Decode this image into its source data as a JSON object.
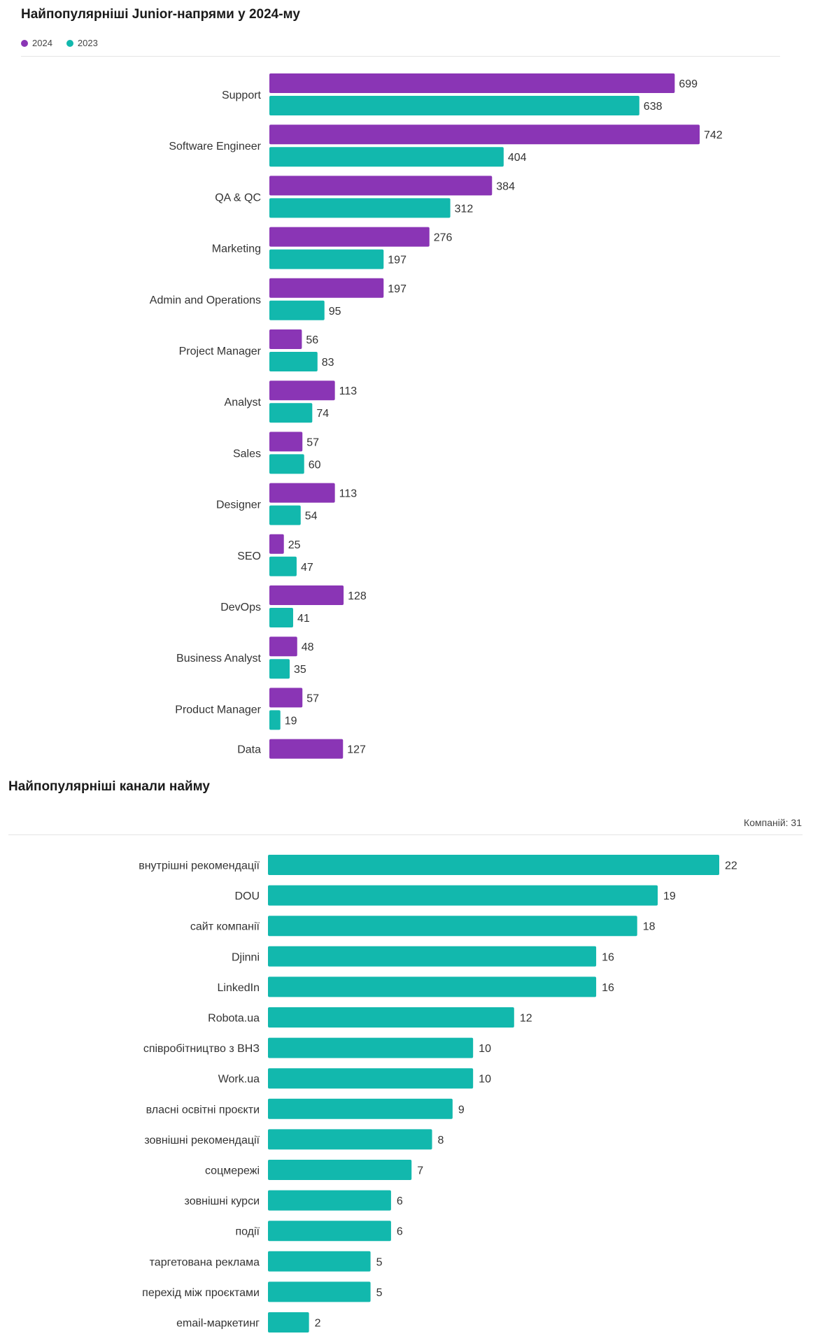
{
  "chart_data": [
    {
      "type": "bar",
      "orientation": "horizontal",
      "title": "Найпопулярніші Junior-напрями у 2024-му",
      "legend_position": "top-left",
      "grid": false,
      "categories": [
        "Support",
        "Software Engineer",
        "QA & QC",
        "Marketing",
        "Admin and Operations",
        "Project Manager",
        "Analyst",
        "Sales",
        "Designer",
        "SEO",
        "DevOps",
        "Business Analyst",
        "Product Manager",
        "Data"
      ],
      "series": [
        {
          "name": "2024",
          "color": "#8a35b5",
          "values": [
            699,
            742,
            384,
            276,
            197,
            56,
            113,
            57,
            113,
            25,
            128,
            48,
            57,
            127
          ]
        },
        {
          "name": "2023",
          "color": "#12b8ad",
          "values": [
            638,
            404,
            312,
            197,
            95,
            83,
            74,
            60,
            54,
            47,
            41,
            35,
            19,
            null
          ]
        }
      ]
    },
    {
      "type": "bar",
      "orientation": "horizontal",
      "title": "Найпопулярніші канали найму",
      "footnote": "Компаній: 31",
      "grid": false,
      "color": "#12b8ad",
      "categories": [
        "внутрішні рекомендації",
        "DOU",
        "сайт компанії",
        "Djinni",
        "LinkedIn",
        "Robota.ua",
        "співробітництво з ВНЗ",
        "Work.ua",
        "власні освітні проєкти",
        "зовнішні рекомендації",
        "соцмережі",
        "зовнішні курси",
        "події",
        "таргетована реклама",
        "перехід між проєктами",
        "email-маркетинг"
      ],
      "values": [
        22,
        19,
        18,
        16,
        16,
        12,
        10,
        10,
        9,
        8,
        7,
        6,
        6,
        5,
        5,
        2
      ]
    }
  ]
}
